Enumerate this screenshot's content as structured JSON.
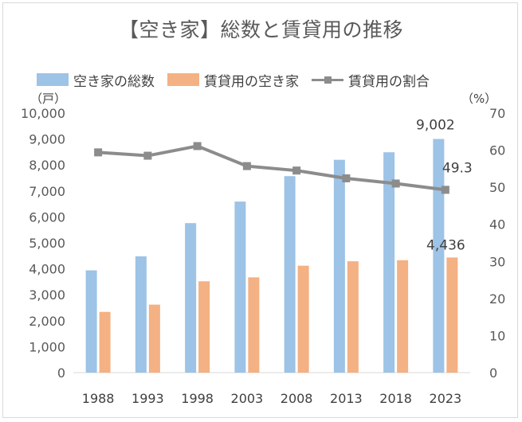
{
  "chart_data": {
    "type": "bar",
    "title": "【空き家】総数と賃貸用の推移",
    "categories": [
      "1988",
      "1993",
      "1998",
      "2003",
      "2008",
      "2013",
      "2018",
      "2023"
    ],
    "series": [
      {
        "name": "空き家の総数",
        "kind": "bar",
        "axis": "left",
        "color": "#9dc3e6",
        "values": [
          3940,
          4480,
          5760,
          6590,
          7570,
          8200,
          8490,
          9002
        ]
      },
      {
        "name": "賃貸用の空き家",
        "kind": "bar",
        "axis": "left",
        "color": "#f4b183",
        "values": [
          2340,
          2620,
          3520,
          3670,
          4120,
          4290,
          4330,
          4436
        ]
      },
      {
        "name": "賃貸用の割合",
        "kind": "line",
        "axis": "right",
        "color": "#8c8c8c",
        "values": [
          59.4,
          58.5,
          61.1,
          55.7,
          54.5,
          52.4,
          51.0,
          49.3
        ]
      }
    ],
    "left_axis": {
      "unit": "（戸）",
      "min": 0,
      "max": 10000,
      "step": 1000,
      "ticks": [
        "0",
        "1,000",
        "2,000",
        "3,000",
        "4,000",
        "5,000",
        "6,000",
        "7,000",
        "8,000",
        "9,000",
        "10,000"
      ]
    },
    "right_axis": {
      "unit": "（%）",
      "min": 0,
      "max": 70,
      "step": 10,
      "ticks": [
        "0",
        "10",
        "20",
        "30",
        "40",
        "50",
        "60",
        "70"
      ]
    },
    "data_labels": {
      "total_2023": "9,002",
      "rental_2023": "4,436",
      "ratio_2023": "49.3"
    },
    "grid": false,
    "legend_position": "top"
  }
}
